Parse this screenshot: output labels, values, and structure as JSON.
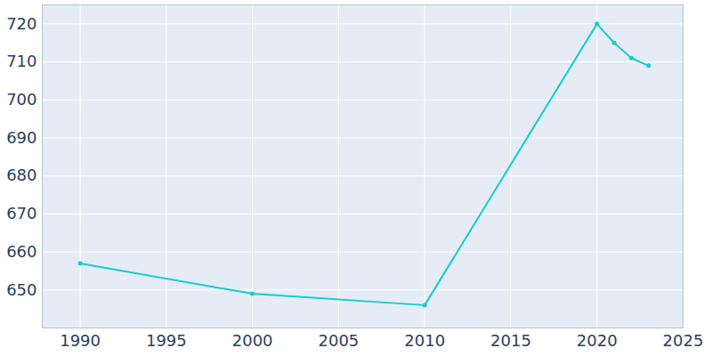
{
  "chart_data": {
    "type": "line",
    "x": [
      1990,
      2000,
      2010,
      2020,
      2021,
      2022,
      2023
    ],
    "values": [
      657,
      649,
      646,
      720,
      715,
      711,
      709
    ],
    "color": "#17cccc",
    "marker": "circle",
    "xlim": [
      1987.8,
      2025
    ],
    "xticks": [
      1990,
      1995,
      2000,
      2005,
      2010,
      2015,
      2020,
      2025
    ],
    "ylim": [
      640,
      725
    ],
    "yticks": [
      650,
      660,
      670,
      680,
      690,
      700,
      710,
      720
    ],
    "grid": true
  }
}
